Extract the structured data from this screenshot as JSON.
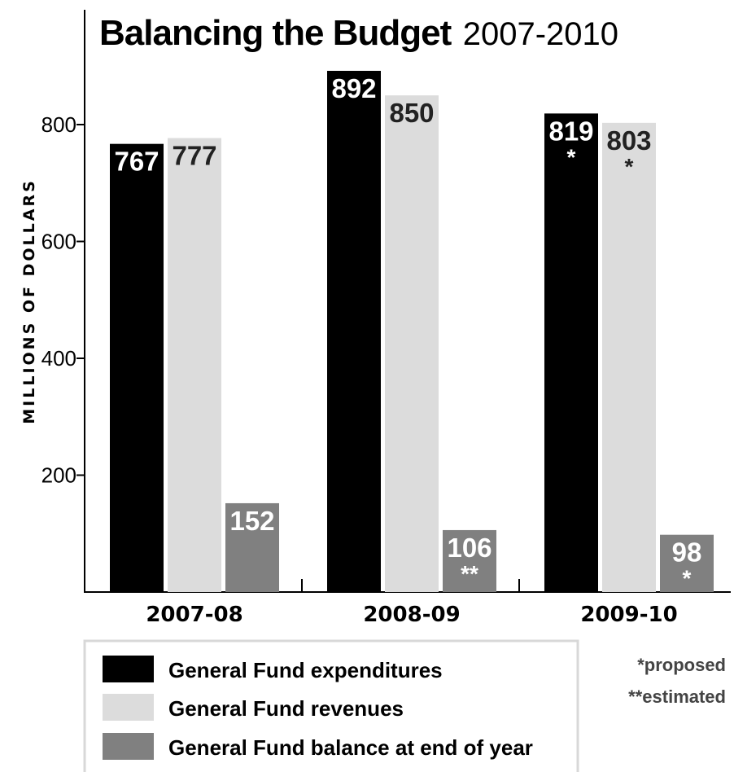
{
  "chart_data": {
    "type": "bar",
    "title": "Balancing the Budget",
    "subtitle": "2007-2010",
    "xlabel": "",
    "ylabel": "MILLIONS OF DOLLARS",
    "ylim": [
      0,
      900
    ],
    "yticks": [
      200,
      400,
      600,
      800
    ],
    "ytick_labels": [
      "200",
      "400",
      "600",
      "800"
    ],
    "grid": false,
    "legend_position": "bottom-left",
    "categories": [
      "2007-08",
      "2008-09",
      "2009-10"
    ],
    "series": [
      {
        "name": "General Fund expenditures",
        "color": "#000000",
        "label_color": "#ffffff",
        "values": [
          767,
          892,
          819
        ],
        "labels": [
          "767",
          "892",
          "819"
        ],
        "notes": [
          "",
          "",
          "*"
        ]
      },
      {
        "name": "General Fund revenues",
        "color": "#dcdcdc",
        "label_color": "#222222",
        "values": [
          777,
          850,
          803
        ],
        "labels": [
          "777",
          "850",
          "803"
        ],
        "notes": [
          "",
          "",
          "*"
        ]
      },
      {
        "name": "General Fund balance at end of year",
        "color": "#808080",
        "label_color": "#ffffff",
        "values": [
          152,
          106,
          98
        ],
        "labels": [
          "152",
          "106",
          "98"
        ],
        "notes": [
          "",
          "**",
          "*"
        ]
      }
    ],
    "footnotes": [
      "*proposed",
      "**estimated"
    ]
  }
}
